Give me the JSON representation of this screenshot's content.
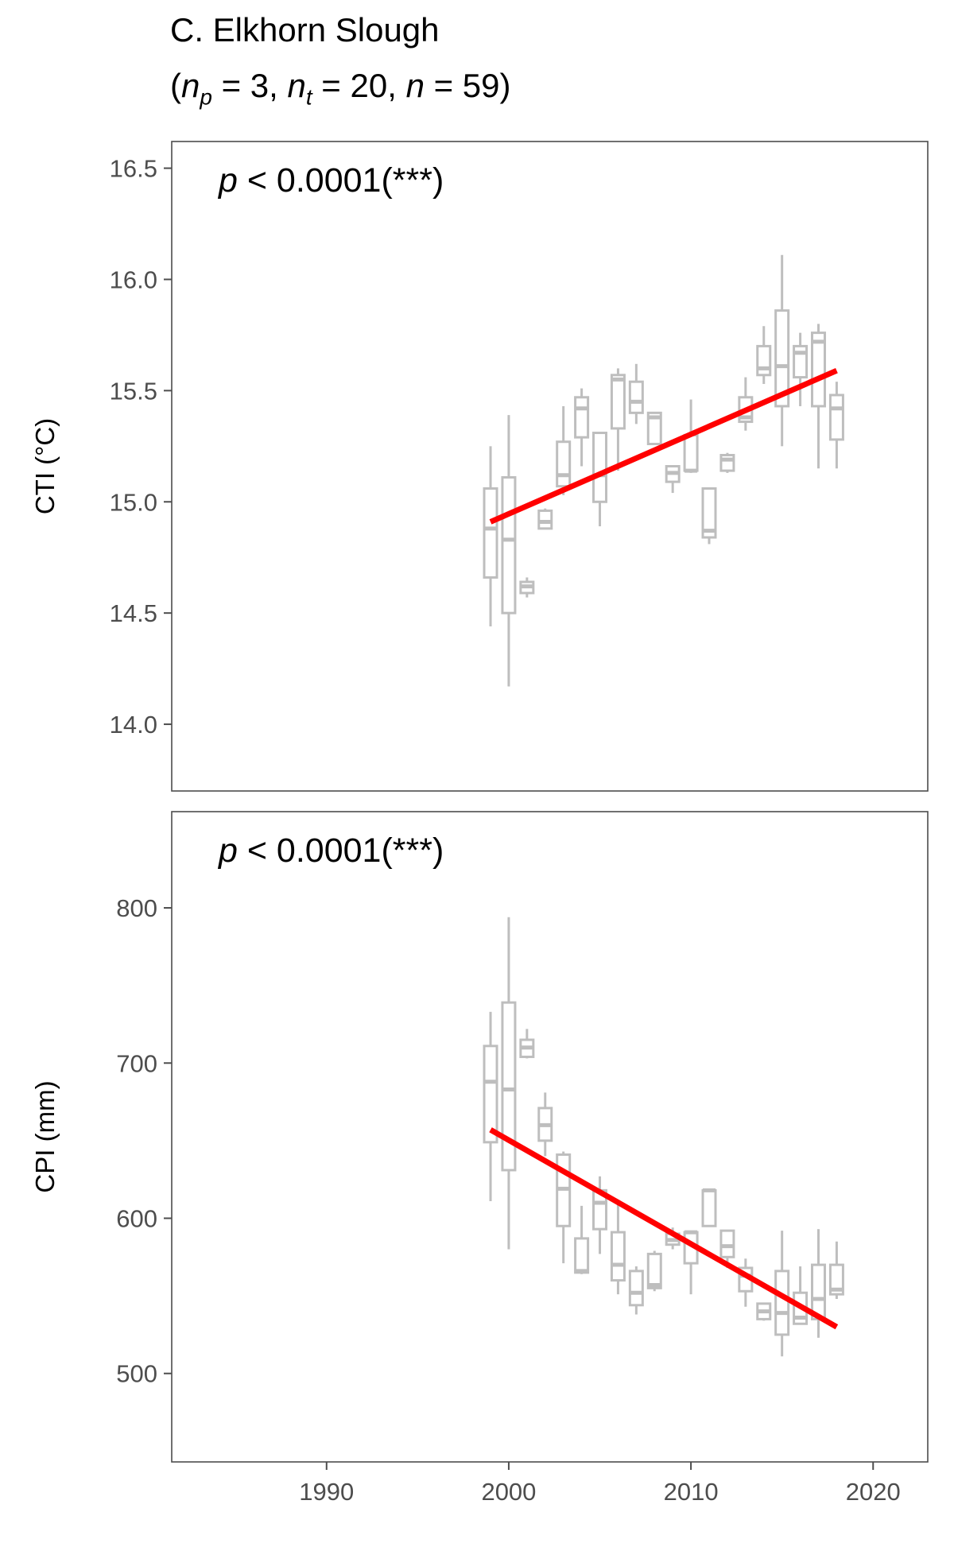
{
  "header": {
    "title": "C. Elkhorn Slough",
    "subtitle": {
      "open": "(",
      "np_label": "n",
      "np_sub": "p",
      "np_rest": " = 3, ",
      "nt_label": "n",
      "nt_sub": "t",
      "nt_rest": " = 20, ",
      "n_label": "n",
      "n_rest": " = 59)"
    }
  },
  "colors": {
    "box": "#bebebe",
    "trend": "#ff0000",
    "axis": "#4d4d4d",
    "tick_text": "#4d4d4d",
    "panel_border": "#4d4d4d"
  },
  "chart_data": [
    {
      "type": "box",
      "annotation": "p < 0.0001(***)",
      "annotation_parts": {
        "p": "p",
        "rest": " < 0.0001(***)"
      },
      "ylabel": "CTI (°C)",
      "xlim": [
        1981.5,
        2023
      ],
      "ylim": [
        13.7,
        16.62
      ],
      "y_ticks": [
        14.0,
        14.5,
        15.0,
        15.5,
        16.0,
        16.5
      ],
      "y_tick_labels": [
        "14.0",
        "14.5",
        "15.0",
        "15.5",
        "16.0",
        "16.5"
      ],
      "boxes": [
        {
          "x": 1999,
          "min": 14.44,
          "q1": 14.66,
          "median": 14.88,
          "q3": 15.06,
          "max": 15.25
        },
        {
          "x": 2000,
          "min": 14.17,
          "q1": 14.5,
          "median": 14.83,
          "q3": 15.11,
          "max": 15.39
        },
        {
          "x": 2001,
          "min": 14.57,
          "q1": 14.59,
          "median": 14.62,
          "q3": 14.64,
          "max": 14.66
        },
        {
          "x": 2002,
          "min": 14.88,
          "q1": 14.88,
          "median": 14.91,
          "q3": 14.96,
          "max": 14.97
        },
        {
          "x": 2003,
          "min": 15.03,
          "q1": 15.07,
          "median": 15.12,
          "q3": 15.27,
          "max": 15.43
        },
        {
          "x": 2004,
          "min": 15.16,
          "q1": 15.29,
          "median": 15.42,
          "q3": 15.47,
          "max": 15.51
        },
        {
          "x": 2005,
          "min": 14.89,
          "q1": 15.0,
          "median": 15.12,
          "q3": 15.31,
          "max": 15.31
        },
        {
          "x": 2006,
          "min": 15.14,
          "q1": 15.33,
          "median": 15.55,
          "q3": 15.57,
          "max": 15.6
        },
        {
          "x": 2007,
          "min": 15.35,
          "q1": 15.4,
          "median": 15.45,
          "q3": 15.54,
          "max": 15.62
        },
        {
          "x": 2008,
          "min": 15.26,
          "q1": 15.26,
          "median": 15.38,
          "q3": 15.4,
          "max": 15.4
        },
        {
          "x": 2009,
          "min": 15.04,
          "q1": 15.09,
          "median": 15.13,
          "q3": 15.16,
          "max": 15.16
        },
        {
          "x": 2010,
          "min": 15.13,
          "q1": 15.14,
          "median": 15.14,
          "q3": 15.3,
          "max": 15.46
        },
        {
          "x": 2011,
          "min": 14.81,
          "q1": 14.84,
          "median": 14.87,
          "q3": 15.06,
          "max": 15.06
        },
        {
          "x": 2012,
          "min": 15.13,
          "q1": 15.14,
          "median": 15.19,
          "q3": 15.21,
          "max": 15.22
        },
        {
          "x": 2013,
          "min": 15.32,
          "q1": 15.36,
          "median": 15.38,
          "q3": 15.47,
          "max": 15.56
        },
        {
          "x": 2014,
          "min": 15.53,
          "q1": 15.57,
          "median": 15.6,
          "q3": 15.7,
          "max": 15.79
        },
        {
          "x": 2015,
          "min": 15.25,
          "q1": 15.43,
          "median": 15.61,
          "q3": 15.86,
          "max": 16.11
        },
        {
          "x": 2016,
          "min": 15.43,
          "q1": 15.56,
          "median": 15.67,
          "q3": 15.7,
          "max": 15.76
        },
        {
          "x": 2017,
          "min": 15.15,
          "q1": 15.43,
          "median": 15.72,
          "q3": 15.76,
          "max": 15.8
        },
        {
          "x": 2018,
          "min": 15.15,
          "q1": 15.28,
          "median": 15.42,
          "q3": 15.48,
          "max": 15.54
        }
      ],
      "trend": {
        "x": [
          1999,
          2018
        ],
        "y": [
          14.91,
          15.59
        ]
      }
    },
    {
      "type": "box",
      "annotation": "p < 0.0001(***)",
      "annotation_parts": {
        "p": "p",
        "rest": " < 0.0001(***)"
      },
      "ylabel": "CPI (mm)",
      "xlabel": "",
      "xlim": [
        1981.5,
        2023
      ],
      "ylim": [
        443,
        862
      ],
      "x_ticks": [
        1990,
        2000,
        2010,
        2020
      ],
      "x_tick_labels": [
        "1990",
        "2000",
        "2010",
        "2020"
      ],
      "y_ticks": [
        500,
        600,
        700,
        800
      ],
      "y_tick_labels": [
        "500",
        "600",
        "700",
        "800"
      ],
      "boxes": [
        {
          "x": 1999,
          "min": 611,
          "q1": 649,
          "median": 688,
          "q3": 711,
          "max": 733
        },
        {
          "x": 2000,
          "min": 580,
          "q1": 631,
          "median": 683,
          "q3": 739,
          "max": 794
        },
        {
          "x": 2001,
          "min": 703,
          "q1": 704,
          "median": 710,
          "q3": 715,
          "max": 722
        },
        {
          "x": 2002,
          "min": 640,
          "q1": 650,
          "median": 660,
          "q3": 671,
          "max": 681
        },
        {
          "x": 2003,
          "min": 571,
          "q1": 595,
          "median": 619,
          "q3": 641,
          "max": 643
        },
        {
          "x": 2004,
          "min": 564,
          "q1": 565,
          "median": 566,
          "q3": 587,
          "max": 608
        },
        {
          "x": 2005,
          "min": 577,
          "q1": 593,
          "median": 610,
          "q3": 618,
          "max": 627
        },
        {
          "x": 2006,
          "min": 551,
          "q1": 560,
          "median": 570,
          "q3": 591,
          "max": 612
        },
        {
          "x": 2007,
          "min": 538,
          "q1": 544,
          "median": 552,
          "q3": 566,
          "max": 569
        },
        {
          "x": 2008,
          "min": 553,
          "q1": 555,
          "median": 557,
          "q3": 577,
          "max": 579
        },
        {
          "x": 2009,
          "min": 580,
          "q1": 583,
          "median": 586,
          "q3": 590,
          "max": 594
        },
        {
          "x": 2010,
          "min": 551,
          "q1": 571,
          "median": 591,
          "q3": 591,
          "max": 592
        },
        {
          "x": 2011,
          "min": 595,
          "q1": 595,
          "median": 618,
          "q3": 618,
          "max": 619
        },
        {
          "x": 2012,
          "min": 568,
          "q1": 575,
          "median": 582,
          "q3": 592,
          "max": 592
        },
        {
          "x": 2013,
          "min": 543,
          "q1": 553,
          "median": 563,
          "q3": 568,
          "max": 574
        },
        {
          "x": 2014,
          "min": 534,
          "q1": 535,
          "median": 540,
          "q3": 545,
          "max": 545
        },
        {
          "x": 2015,
          "min": 511,
          "q1": 525,
          "median": 539,
          "q3": 566,
          "max": 592
        },
        {
          "x": 2016,
          "min": 532,
          "q1": 532,
          "median": 536,
          "q3": 552,
          "max": 569
        },
        {
          "x": 2017,
          "min": 523,
          "q1": 535,
          "median": 548,
          "q3": 570,
          "max": 593
        },
        {
          "x": 2018,
          "min": 548,
          "q1": 551,
          "median": 554,
          "q3": 570,
          "max": 585
        }
      ],
      "trend": {
        "x": [
          1999,
          2018
        ],
        "y": [
          657,
          530
        ]
      }
    }
  ]
}
